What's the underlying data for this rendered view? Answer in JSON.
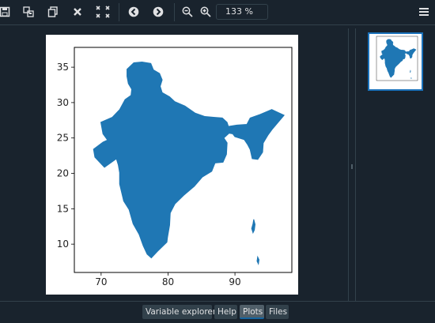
{
  "toolbar": {
    "buttons": [
      {
        "name": "save-icon"
      },
      {
        "name": "save-all-icon"
      },
      {
        "name": "copy-icon"
      },
      {
        "name": "close-icon"
      },
      {
        "name": "close-all-icon"
      },
      {
        "name": "previous-icon"
      },
      {
        "name": "next-icon"
      },
      {
        "name": "zoom-out-icon"
      },
      {
        "name": "zoom-in-icon"
      }
    ],
    "zoom_value": "133 %",
    "menu_icon": "hamburger-icon"
  },
  "chart_data": {
    "type": "map",
    "title": "",
    "xlabel": "",
    "ylabel": "",
    "xlim": [
      66,
      98.5
    ],
    "ylim": [
      6,
      37.8
    ],
    "xticks": [
      70,
      80,
      90
    ],
    "yticks": [
      10,
      15,
      20,
      25,
      30,
      35
    ],
    "xtick_labels": [
      "70",
      "80",
      "90"
    ],
    "ytick_labels": [
      "10",
      "15",
      "20",
      "25",
      "30",
      "35"
    ],
    "fill_color": "#1f77b4",
    "grid": false,
    "outline": [
      [
        73.9,
        34.7
      ],
      [
        74.9,
        35.6
      ],
      [
        76.1,
        35.7
      ],
      [
        77.4,
        35.5
      ],
      [
        77.8,
        34.6
      ],
      [
        78.7,
        34.1
      ],
      [
        79.1,
        33.2
      ],
      [
        78.8,
        32.3
      ],
      [
        79.1,
        31.4
      ],
      [
        80.2,
        30.8
      ],
      [
        81.0,
        30.1
      ],
      [
        82.5,
        29.5
      ],
      [
        84.0,
        28.5
      ],
      [
        85.5,
        28.0
      ],
      [
        86.8,
        27.9
      ],
      [
        88.1,
        27.8
      ],
      [
        88.8,
        27.2
      ],
      [
        89.0,
        26.6
      ],
      [
        90.3,
        26.8
      ],
      [
        91.8,
        26.9
      ],
      [
        92.3,
        27.8
      ],
      [
        93.8,
        28.3
      ],
      [
        95.5,
        29.0
      ],
      [
        96.6,
        28.5
      ],
      [
        97.3,
        28.2
      ],
      [
        96.4,
        27.2
      ],
      [
        95.5,
        26.2
      ],
      [
        94.9,
        25.4
      ],
      [
        94.2,
        24.3
      ],
      [
        94.1,
        23.0
      ],
      [
        93.4,
        22.0
      ],
      [
        92.6,
        22.1
      ],
      [
        92.3,
        23.4
      ],
      [
        91.9,
        24.1
      ],
      [
        91.4,
        24.8
      ],
      [
        90.0,
        25.2
      ],
      [
        89.7,
        25.6
      ],
      [
        89.1,
        25.7
      ],
      [
        88.3,
        25.0
      ],
      [
        88.8,
        24.3
      ],
      [
        88.7,
        22.7
      ],
      [
        88.2,
        21.6
      ],
      [
        87.0,
        21.5
      ],
      [
        86.5,
        20.3
      ],
      [
        85.1,
        19.5
      ],
      [
        83.9,
        18.2
      ],
      [
        82.3,
        16.9
      ],
      [
        81.0,
        15.7
      ],
      [
        80.3,
        14.4
      ],
      [
        80.2,
        12.7
      ],
      [
        79.9,
        11.0
      ],
      [
        79.8,
        10.3
      ],
      [
        78.4,
        9.0
      ],
      [
        77.5,
        8.1
      ],
      [
        76.9,
        8.6
      ],
      [
        76.3,
        9.8
      ],
      [
        75.7,
        11.4
      ],
      [
        74.8,
        12.9
      ],
      [
        74.2,
        14.9
      ],
      [
        73.4,
        16.1
      ],
      [
        72.8,
        18.5
      ],
      [
        72.8,
        20.1
      ],
      [
        72.6,
        21.2
      ],
      [
        72.3,
        22.1
      ],
      [
        70.5,
        20.9
      ],
      [
        69.1,
        22.3
      ],
      [
        68.9,
        23.4
      ],
      [
        70.3,
        24.4
      ],
      [
        71.0,
        24.7
      ],
      [
        70.3,
        25.6
      ],
      [
        70.0,
        27.2
      ],
      [
        71.7,
        27.9
      ],
      [
        72.8,
        29.0
      ],
      [
        73.6,
        30.4
      ],
      [
        74.5,
        31.0
      ],
      [
        74.6,
        31.9
      ],
      [
        74.1,
        32.7
      ],
      [
        73.9,
        33.7
      ],
      [
        73.9,
        34.7
      ]
    ],
    "islands": [
      [
        [
          92.8,
          13.5
        ],
        [
          93.0,
          12.8
        ],
        [
          92.9,
          12.0
        ],
        [
          92.7,
          11.6
        ],
        [
          92.5,
          12.2
        ],
        [
          92.7,
          12.9
        ],
        [
          92.8,
          13.5
        ]
      ],
      [
        [
          93.4,
          8.2
        ],
        [
          93.6,
          7.8
        ],
        [
          93.5,
          7.2
        ],
        [
          93.3,
          7.6
        ],
        [
          93.4,
          8.2
        ]
      ]
    ]
  },
  "thumbnail": {
    "selected": true
  },
  "tabs": [
    {
      "label": "Variable explorer",
      "active": false
    },
    {
      "label": "Help",
      "active": false
    },
    {
      "label": "Plots",
      "active": true
    },
    {
      "label": "Files",
      "active": false
    }
  ]
}
